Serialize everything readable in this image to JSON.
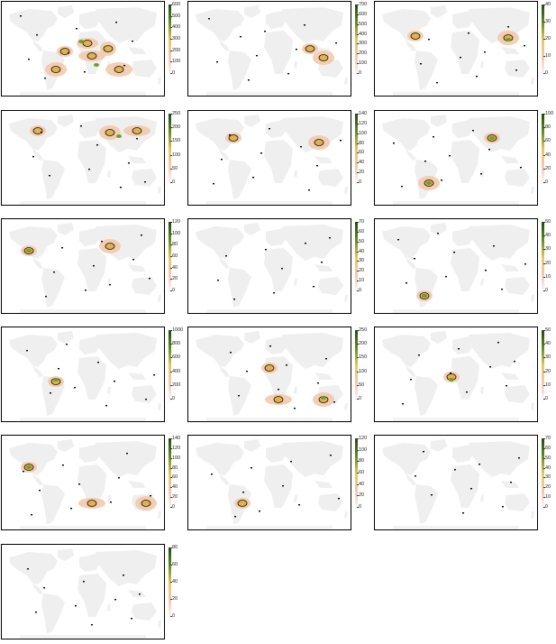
{
  "panels": [
    {
      "ticks": [
        "0",
        "100",
        "200",
        "300",
        "400",
        "500",
        "600"
      ],
      "hot": [
        [
          70,
          55
        ],
        [
          60,
          75
        ],
        [
          100,
          60
        ],
        [
          118,
          52
        ],
        [
          95,
          46
        ],
        [
          130,
          75
        ]
      ],
      "cool": [
        [
          88,
          44
        ],
        [
          105,
          70
        ]
      ]
    },
    {
      "ticks": [
        "0",
        "100",
        "200",
        "300",
        "400",
        "500",
        "600",
        "700"
      ],
      "hot": [
        [
          135,
          52
        ],
        [
          150,
          62
        ]
      ],
      "cool": []
    },
    {
      "ticks": [
        "0",
        "10",
        "20",
        "30",
        "40"
      ],
      "hot": [
        [
          45,
          38
        ],
        [
          148,
          40
        ]
      ],
      "cool": [
        [
          148,
          42
        ]
      ]
    },
    {
      "ticks": [
        "0",
        "50",
        "100",
        "150",
        "200",
        "250"
      ],
      "hot": [
        [
          40,
          22
        ],
        [
          120,
          24
        ],
        [
          150,
          22
        ]
      ],
      "cool": [
        [
          130,
          28
        ]
      ]
    },
    {
      "ticks": [
        "0",
        "20",
        "40",
        "60",
        "80",
        "100",
        "120",
        "140"
      ],
      "hot": [
        [
          50,
          30
        ],
        [
          145,
          35
        ]
      ],
      "cool": []
    },
    {
      "ticks": [
        "0",
        "20",
        "40",
        "60",
        "80",
        "100"
      ],
      "hot": [
        [
          130,
          30
        ],
        [
          60,
          80
        ]
      ],
      "cool": [
        [
          130,
          30
        ],
        [
          60,
          80
        ]
      ]
    },
    {
      "ticks": [
        "0",
        "20",
        "40",
        "60",
        "80",
        "100",
        "120"
      ],
      "hot": [
        [
          30,
          35
        ],
        [
          120,
          30
        ]
      ],
      "cool": [
        [
          30,
          35
        ]
      ]
    },
    {
      "ticks": [
        "0",
        "10",
        "20",
        "30",
        "40",
        "50",
        "60",
        "70"
      ],
      "hot": [],
      "cool": []
    },
    {
      "ticks": [
        "0",
        "10",
        "20",
        "30",
        "40",
        "50"
      ],
      "hot": [
        [
          55,
          85
        ]
      ],
      "cool": [
        [
          55,
          85
        ]
      ]
    },
    {
      "ticks": [
        "0",
        "200",
        "400",
        "600",
        "800",
        "1000"
      ],
      "hot": [
        [
          60,
          60
        ]
      ],
      "cool": [
        [
          60,
          58
        ]
      ]
    },
    {
      "ticks": [
        "0",
        "50",
        "100",
        "150",
        "200",
        "250"
      ],
      "hot": [
        [
          90,
          45
        ],
        [
          150,
          80
        ],
        [
          100,
          80
        ]
      ],
      "cool": [
        [
          150,
          78
        ]
      ]
    },
    {
      "ticks": [
        "0",
        "10",
        "20",
        "30",
        "40",
        "50"
      ],
      "hot": [
        [
          85,
          55
        ]
      ],
      "cool": [
        [
          85,
          58
        ]
      ]
    },
    {
      "ticks": [
        "0",
        "20",
        "40",
        "60",
        "80",
        "100",
        "120",
        "140"
      ],
      "hot": [
        [
          30,
          35
        ],
        [
          160,
          75
        ],
        [
          100,
          75
        ]
      ],
      "cool": [
        [
          30,
          35
        ]
      ]
    },
    {
      "ticks": [
        "0",
        "20",
        "40",
        "60",
        "80",
        "100",
        "120"
      ],
      "hot": [
        [
          60,
          75
        ]
      ],
      "cool": []
    },
    {
      "ticks": [
        "0",
        "10",
        "20",
        "30",
        "40",
        "50",
        "60",
        "70"
      ],
      "hot": [],
      "cool": []
    },
    {
      "ticks": [
        "0",
        "20",
        "40",
        "60",
        "80"
      ],
      "hot": [],
      "cool": []
    }
  ]
}
